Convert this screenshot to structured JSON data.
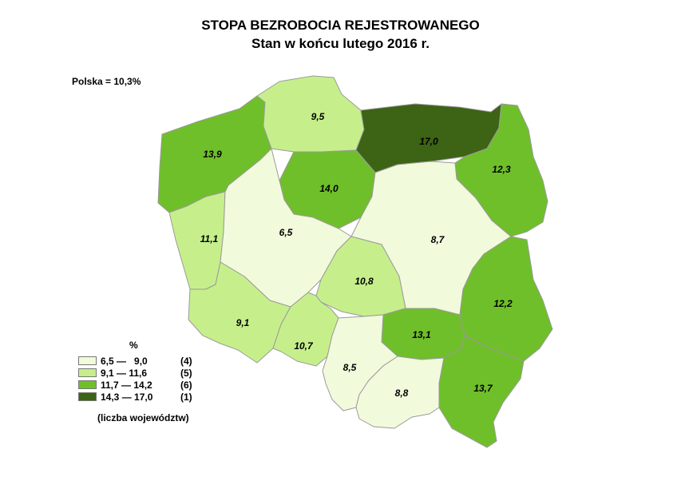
{
  "title": "STOPA BEZROBOCIA REJESTROWANEGO",
  "subtitle": "Stan w końcu lutego 2016 r.",
  "national_rate": "Polska = 10,3%",
  "colors": {
    "class1": "#f2fadc",
    "class2": "#c6ef8c",
    "class3": "#6fbf2a",
    "class4": "#3d6314",
    "border": "#9a9a9a"
  },
  "legend": {
    "unit": "%",
    "items": [
      {
        "range": "6,5 —   9,0",
        "count": "(4)",
        "color_class": "class1"
      },
      {
        "range": "9,1 — 11,6",
        "count": "(5)",
        "color_class": "class2"
      },
      {
        "range": "11,7 — 14,2",
        "count": "(6)",
        "color_class": "class3"
      },
      {
        "range": "14,3 — 17,0",
        "count": "(1)",
        "color_class": "class4"
      }
    ],
    "note": "(liczba województw)"
  },
  "regions": [
    {
      "key": "zachodniopomorskie",
      "value": "13,9",
      "color_class": "class3"
    },
    {
      "key": "pomorskie",
      "value": "9,5",
      "color_class": "class2"
    },
    {
      "key": "warminsko-mazurskie",
      "value": "17,0",
      "color_class": "class4"
    },
    {
      "key": "podlaskie",
      "value": "12,3",
      "color_class": "class3"
    },
    {
      "key": "kujawsko-pomorskie",
      "value": "14,0",
      "color_class": "class3"
    },
    {
      "key": "lubuskie",
      "value": "11,1",
      "color_class": "class2"
    },
    {
      "key": "wielkopolskie",
      "value": "6,5",
      "color_class": "class1"
    },
    {
      "key": "mazowieckie",
      "value": "8,7",
      "color_class": "class1"
    },
    {
      "key": "lodzkie",
      "value": "10,8",
      "color_class": "class2"
    },
    {
      "key": "lubelskie",
      "value": "12,2",
      "color_class": "class3"
    },
    {
      "key": "dolnoslaskie",
      "value": "9,1",
      "color_class": "class2"
    },
    {
      "key": "opolskie",
      "value": "10,7",
      "color_class": "class2"
    },
    {
      "key": "swietokrzyskie",
      "value": "13,1",
      "color_class": "class3"
    },
    {
      "key": "slaskie",
      "value": "8,5",
      "color_class": "class1"
    },
    {
      "key": "malopolskie",
      "value": "8,8",
      "color_class": "class1"
    },
    {
      "key": "podkarpackie",
      "value": "13,7",
      "color_class": "class3"
    }
  ]
}
